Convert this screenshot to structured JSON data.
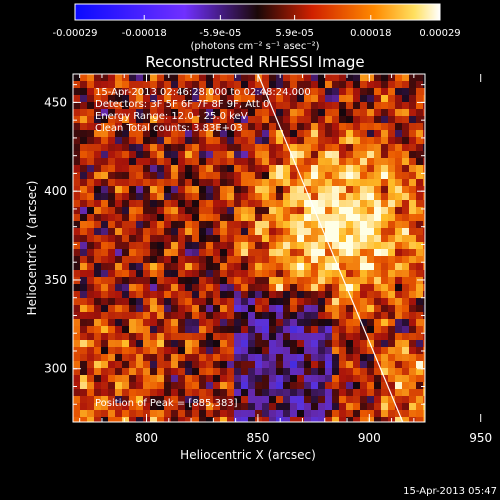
{
  "chart_data": {
    "type": "heatmap",
    "title": "Reconstructed RHESSI Image",
    "xlabel": "Heliocentric X (arcsec)",
    "ylabel": "Heliocentric Y (arcsec)",
    "xlim": [
      767,
      925
    ],
    "ylim": [
      270,
      466
    ],
    "x_ticks": [
      800,
      850,
      900,
      950
    ],
    "y_ticks": [
      300,
      350,
      400,
      450
    ],
    "colorbar": {
      "range": [
        -0.00029,
        0.00029
      ],
      "tick_values": [
        -0.00029,
        -0.00018,
        -5.9e-05,
        5.9e-05,
        0.00018,
        0.00029
      ],
      "tick_labels": [
        "-0.00029",
        "-0.00018",
        "-5.9e-05",
        "5.9e-05",
        "0.00018",
        "0.00029"
      ],
      "unit": "(photons cm⁻² s⁻¹ asec⁻²)",
      "colors": [
        "#1010ff",
        "#7a2cff",
        "#2a1020",
        "#d02000",
        "#ff7a00",
        "#ffd040",
        "#ffffff"
      ]
    },
    "annotations": [
      "15-Apr-2013 02:46:28.000 to 02:48:24.000",
      "Detectors: 3F 5F 6F 7F 8F 9F, Att 0",
      "Energy Range: 12.0 - 25.0 keV",
      "Clean    Total counts: 3.83E+03"
    ],
    "peak_label": "Position of Peak = [885,383]",
    "peak": [
      885,
      383
    ],
    "limb_line": [
      [
        850,
        466
      ],
      [
        915,
        270
      ]
    ],
    "grid": false
  },
  "footer": {
    "timestamp": "15-Apr-2013 05:47"
  }
}
